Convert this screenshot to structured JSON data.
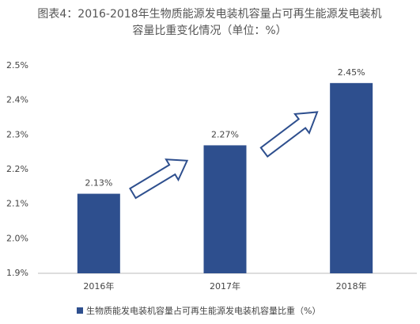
{
  "chart_data": {
    "type": "bar",
    "title": [
      "图表4：2016-2018年生物质能源发电装机容量占可再生能源发电装机",
      "容量比重变化情况（单位：%）"
    ],
    "categories": [
      "2016年",
      "2017年",
      "2018年"
    ],
    "series": [
      {
        "name": "生物质能发电装机容量占可再生能源发电装机容量比重（%）",
        "color": "#2e4f8e",
        "values": [
          2.13,
          2.27,
          2.45
        ],
        "value_labels": [
          "2.13%",
          "2.27%",
          "2.45%"
        ]
      }
    ],
    "ylim": [
      1.9,
      2.5
    ],
    "yticks": [
      {
        "value": 1.9,
        "label": "1.9%"
      },
      {
        "value": 2.0,
        "label": "2.0%"
      },
      {
        "value": 2.1,
        "label": "2.1%"
      },
      {
        "value": 2.2,
        "label": "2.2%"
      },
      {
        "value": 2.3,
        "label": "2.3%"
      },
      {
        "value": 2.4,
        "label": "2.4%"
      },
      {
        "value": 2.5,
        "label": "2.5%"
      }
    ],
    "grid": false
  }
}
